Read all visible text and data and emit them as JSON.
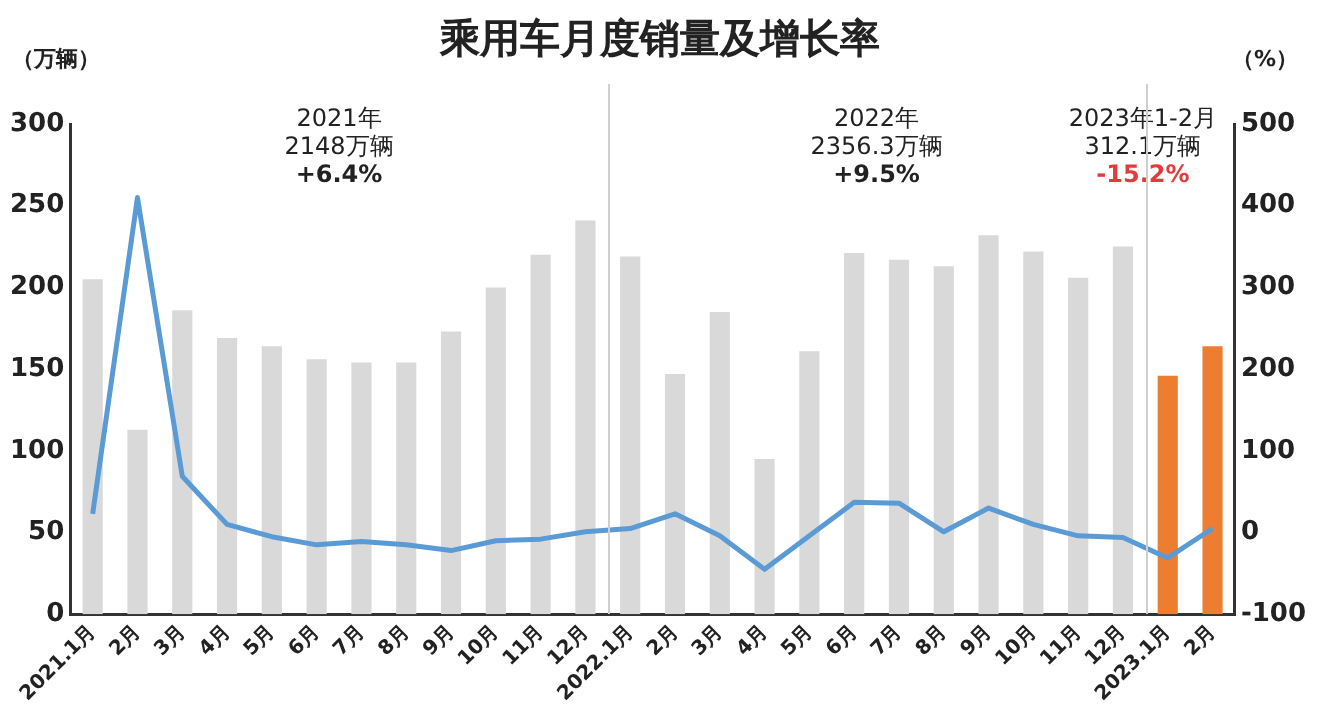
{
  "chart_data": {
    "type": "bar",
    "title": "乘用车月度销量及增长率",
    "ylabel": "（万辆）",
    "y2label": "（%）",
    "categories": [
      "2021.1月",
      "2月",
      "3月",
      "4月",
      "5月",
      "6月",
      "7月",
      "8月",
      "9月",
      "10月",
      "11月",
      "12月",
      "2022.1月",
      "2月",
      "3月",
      "4月",
      "5月",
      "6月",
      "7月",
      "8月",
      "9月",
      "10月",
      "11月",
      "12月",
      "2023.1月",
      "2月"
    ],
    "series": [
      {
        "colors": [
          "#d9d9d9",
          "#d9d9d9",
          "#d9d9d9",
          "#d9d9d9",
          "#d9d9d9",
          "#d9d9d9",
          "#d9d9d9",
          "#d9d9d9",
          "#d9d9d9",
          "#d9d9d9",
          "#d9d9d9",
          "#d9d9d9",
          "#d9d9d9",
          "#d9d9d9",
          "#d9d9d9",
          "#d9d9d9",
          "#d9d9d9",
          "#d9d9d9",
          "#d9d9d9",
          "#d9d9d9",
          "#d9d9d9",
          "#d9d9d9",
          "#d9d9d9",
          "#d9d9d9",
          "#ed7d31",
          "#ed7d31"
        ],
        "values": [
          205,
          113,
          186,
          169,
          164,
          156,
          154,
          154,
          173,
          200,
          220,
          241,
          219,
          147,
          185,
          95,
          161,
          221,
          217,
          213,
          232,
          222,
          206,
          225,
          146,
          164
        ]
      },
      {
        "type": "line",
        "axis": "y2",
        "color": "#5b9bd5",
        "values": [
          23,
          410,
          69,
          10,
          -5,
          -15,
          -11,
          -15,
          -22,
          -10,
          -8,
          1,
          5,
          23,
          -4,
          -45,
          -4,
          37,
          36,
          1,
          30,
          10,
          -4,
          -6,
          -31,
          5
        ]
      }
    ],
    "ylim": [
      0,
      300
    ],
    "yticks": [
      0,
      50,
      100,
      150,
      200,
      250,
      300
    ],
    "y2lim": [
      -100,
      500
    ],
    "y2ticks": [
      -100,
      0,
      100,
      200,
      300,
      400,
      500
    ],
    "grid": false,
    "legend": false,
    "marker": "none",
    "line_style": "solid",
    "annotations": [
      "2021年\n2148万辆\n+6.4%",
      "2022年\n2356.3万辆\n+9.5%",
      "2023年1-2月\n312.1万辆\n-15.2%"
    ]
  }
}
